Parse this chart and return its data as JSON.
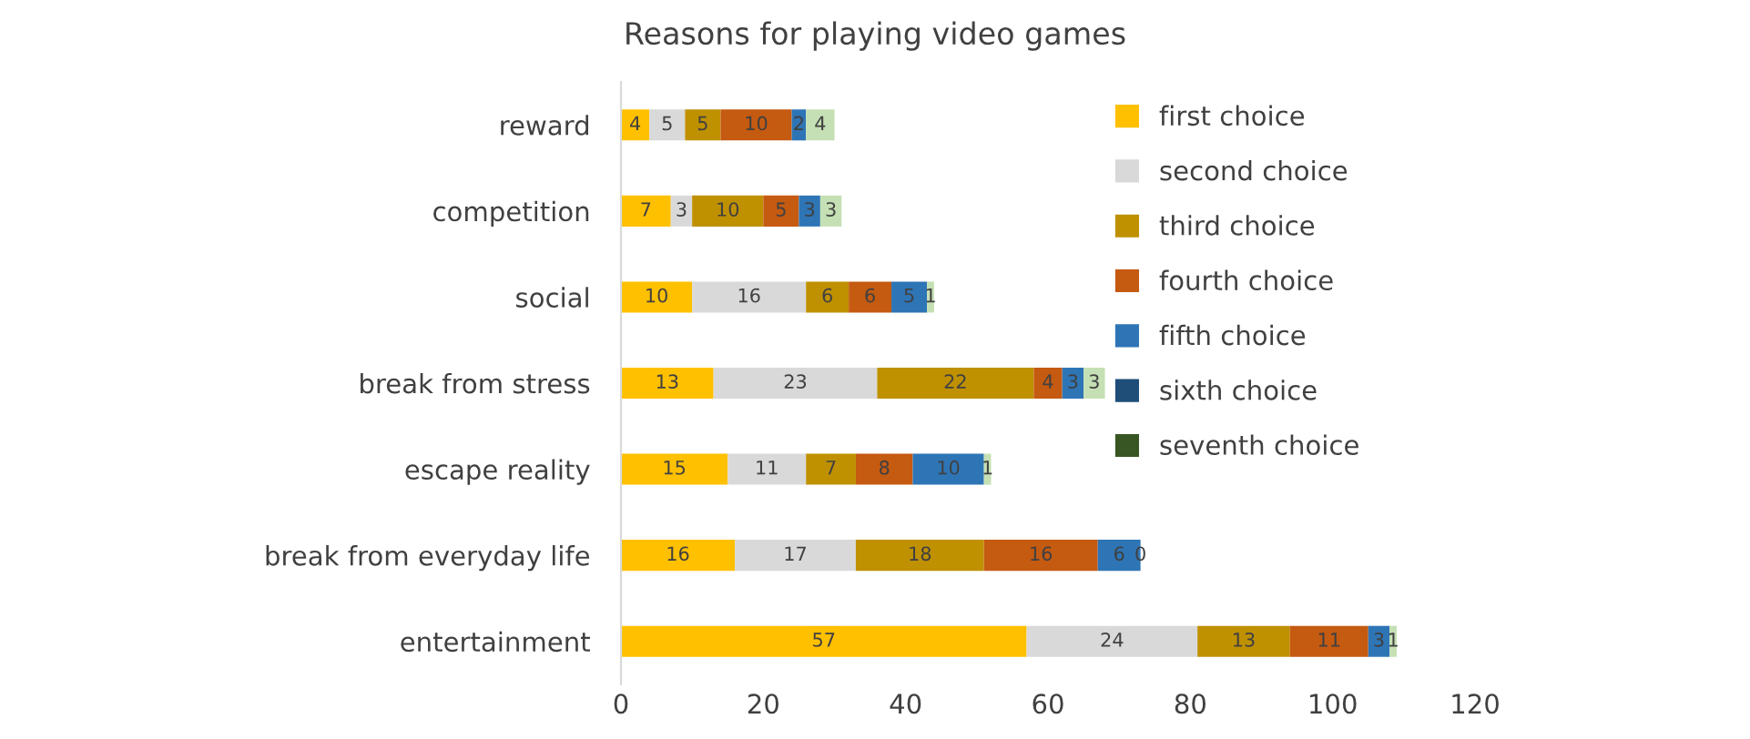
{
  "chart_data": {
    "type": "bar",
    "orientation": "horizontal",
    "stacked": true,
    "title": "Reasons for playing video games",
    "categories": [
      "reward",
      "competition",
      "social",
      "break from stress",
      "escape reality",
      "break from everyday life",
      "entertainment"
    ],
    "series": [
      {
        "name": "first choice",
        "color": "#ffc000",
        "values": [
          4,
          7,
          10,
          13,
          15,
          16,
          57
        ],
        "value_labels": [
          "4",
          "7",
          "10",
          "13",
          "15",
          "16",
          "57"
        ]
      },
      {
        "name": "second choice",
        "color": "#d9d9d9",
        "values": [
          5,
          3,
          16,
          23,
          11,
          17,
          24
        ],
        "value_labels": [
          "5",
          "3",
          "16",
          "23",
          "11",
          "17",
          "24"
        ]
      },
      {
        "name": "third choice",
        "color": "#bf9000",
        "values": [
          5,
          10,
          6,
          22,
          7,
          18,
          13
        ],
        "value_labels": [
          "5",
          "10",
          "6",
          "22",
          "7",
          "18",
          "13"
        ]
      },
      {
        "name": "fourth choice",
        "color": "#c55a11",
        "values": [
          10,
          5,
          6,
          4,
          8,
          16,
          11
        ],
        "value_labels": [
          "10",
          "5",
          "6",
          "4",
          "8",
          "16",
          "11"
        ]
      },
      {
        "name": "fifth choice",
        "color": "#2e75b6",
        "values": [
          2,
          3,
          5,
          3,
          10,
          6,
          3
        ],
        "value_labels": [
          "2",
          "3",
          "5",
          "3",
          "10",
          "6",
          "3"
        ]
      },
      {
        "color": "#c5e0b4",
        "values": [
          4,
          3,
          1,
          3,
          1,
          0,
          1
        ],
        "value_labels": [
          "4",
          "3",
          "1",
          "3",
          "1",
          "0",
          "1"
        ]
      },
      {
        "name": "sixth choice",
        "color": "#1f4e79",
        "values": [
          0,
          0,
          0,
          0,
          0,
          0,
          0
        ]
      },
      {
        "name": "seventh choice",
        "color": "#375623",
        "values": [
          0,
          0,
          0,
          0,
          0,
          0,
          0
        ]
      }
    ],
    "xlim": [
      0,
      120
    ],
    "xticks": [
      0,
      20,
      40,
      60,
      80,
      100,
      120
    ],
    "grid": false,
    "legend": "right"
  }
}
